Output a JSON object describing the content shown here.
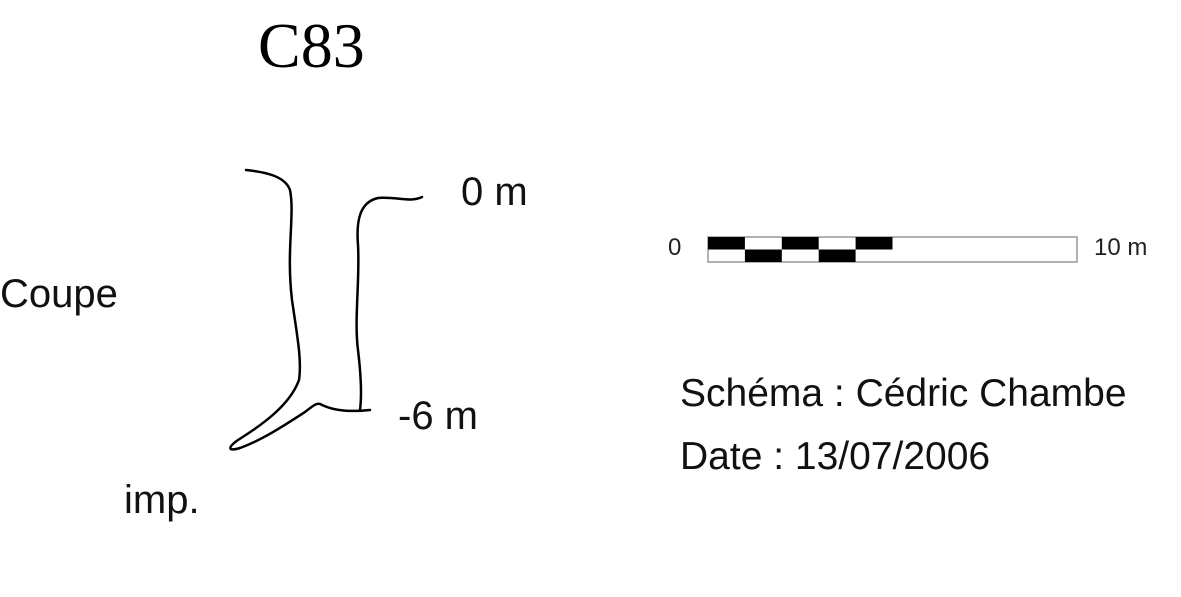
{
  "diagram": {
    "title": "C83",
    "section_label": "Coupe",
    "depth_top_label": "0 m",
    "depth_bottom_label": "-6 m",
    "end_label": "imp."
  },
  "scale_bar": {
    "start_label": "0",
    "end_label": "10 m",
    "segments": 10
  },
  "credits": {
    "author_line": "Schéma : Cédric Chambe",
    "date_line": "Date : 13/07/2006"
  },
  "colors": {
    "ink": "#000000",
    "scale_outline": "#999999",
    "background": "#ffffff"
  }
}
